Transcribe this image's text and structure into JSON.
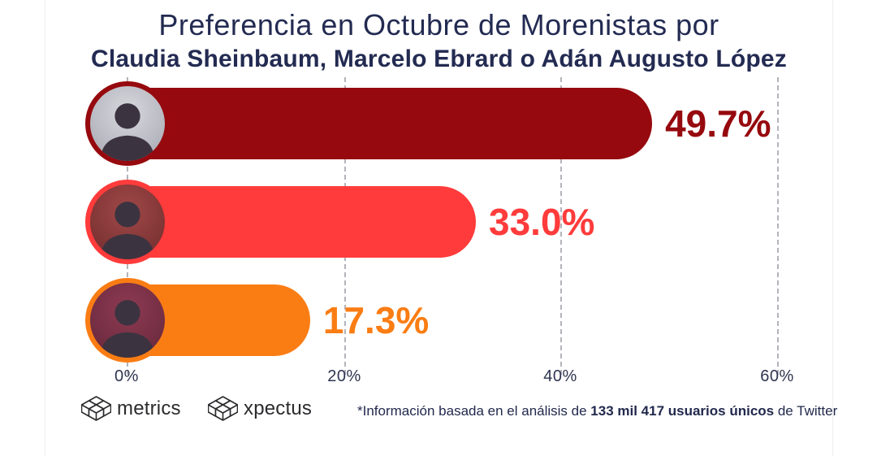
{
  "title": {
    "line1": "Preferencia en Octubre de Morenistas por",
    "line2": "Claudia Sheinbaum, Marcelo Ebrard o Adán Augusto López"
  },
  "chart_data": {
    "type": "bar",
    "orientation": "horizontal",
    "title": "Preferencia en Octubre de Morenistas por Claudia Sheinbaum, Marcelo Ebrard o Adán Augusto López",
    "categories": [
      "Claudia Sheinbaum",
      "Marcelo Ebrard",
      "Adán Augusto López"
    ],
    "values": [
      49.7,
      33.0,
      17.3
    ],
    "value_labels": [
      "49.7%",
      "33.0%",
      "17.3%"
    ],
    "bar_colors": [
      "#96090e",
      "#ff3b3b",
      "#fa7d14"
    ],
    "x_ticks": [
      "0%",
      "20%",
      "40%",
      "60%"
    ],
    "xlim": [
      0,
      60
    ],
    "grid": "dashed-vertical-gridlines",
    "legend": "none",
    "bar_markers": [
      "photo of Claudia Sheinbaum",
      "photo of Marcelo Ebrard",
      "photo of Adán Augusto López"
    ]
  },
  "footer": {
    "logo_metrics": "metrics",
    "logo_xpectus": "xpectus",
    "note_prefix": "*Información basada en el análisis de ",
    "note_bold": "133 mil 417 usuarios únicos",
    "note_suffix": " de Twitter"
  },
  "colors": {
    "title_navy": "#232b52",
    "bar1_dark_red": "#96090e",
    "bar2_red": "#ff3b3b",
    "bar3_orange": "#fa7d14",
    "gridline_gray": "#b3b3ba"
  }
}
